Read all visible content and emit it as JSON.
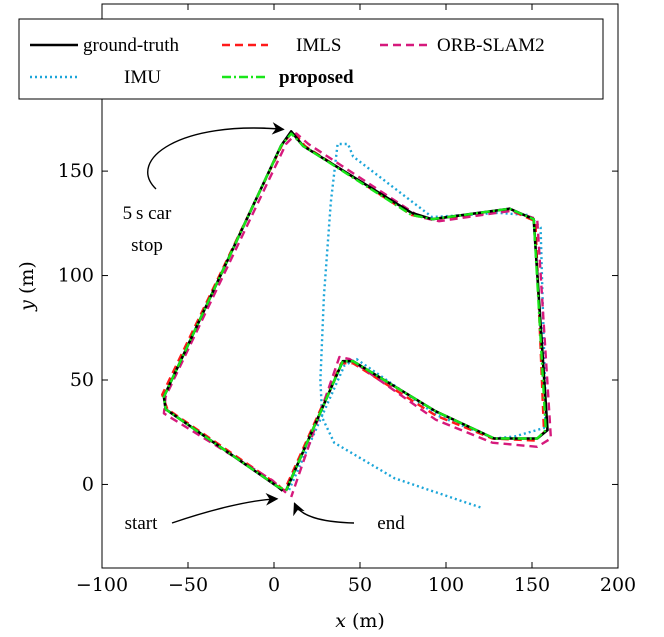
{
  "chart_data": {
    "type": "line",
    "xlabel_var": "x",
    "xlabel_unit": "(m)",
    "ylabel_var": "y",
    "ylabel_unit": "(m)",
    "xlim": [
      -100,
      200
    ],
    "ylim": [
      -40,
      230
    ],
    "xticks": [
      -100,
      -50,
      0,
      50,
      100,
      150,
      200
    ],
    "xtick_labels": [
      "−100",
      "−50",
      "0",
      "50",
      "100",
      "150",
      "200"
    ],
    "yticks": [
      0,
      50,
      100,
      150
    ],
    "ytick_labels": [
      "0",
      "50",
      "100",
      "150"
    ],
    "grid": false,
    "legend_position": "top",
    "series": [
      {
        "name": "ground-truth",
        "color": "#000000",
        "dash": "solid",
        "bold": false,
        "points": [
          [
            5,
            -3
          ],
          [
            2,
            -1
          ],
          [
            -63,
            36
          ],
          [
            -64,
            42
          ],
          [
            4,
            162
          ],
          [
            10,
            169
          ],
          [
            17,
            162
          ],
          [
            80,
            130
          ],
          [
            92,
            127
          ],
          [
            137,
            132
          ],
          [
            151,
            127
          ],
          [
            159,
            26
          ],
          [
            153,
            22
          ],
          [
            128,
            22
          ],
          [
            94,
            35
          ],
          [
            46,
            59
          ],
          [
            40,
            59
          ],
          [
            7,
            -3
          ]
        ]
      },
      {
        "name": "IMLS",
        "color": "#ff1a1a",
        "dash": "dashed",
        "bold": false,
        "points": [
          [
            6,
            -3
          ],
          [
            2,
            0
          ],
          [
            -62,
            36
          ],
          [
            -65,
            43
          ],
          [
            5,
            163
          ],
          [
            11,
            169
          ],
          [
            18,
            162
          ],
          [
            80,
            129
          ],
          [
            92,
            127
          ],
          [
            138,
            131
          ],
          [
            152,
            126
          ],
          [
            157,
            25
          ],
          [
            152,
            21
          ],
          [
            127,
            22
          ],
          [
            94,
            33
          ],
          [
            46,
            58
          ],
          [
            39,
            58
          ],
          [
            6,
            -3
          ]
        ]
      },
      {
        "name": "ORB-SLAM2",
        "color": "#d6197c",
        "dash": "dashed",
        "bold": false,
        "points": [
          [
            7,
            -4
          ],
          [
            -1,
            2
          ],
          [
            -64,
            34
          ],
          [
            -63,
            42
          ],
          [
            7,
            163
          ],
          [
            13,
            168
          ],
          [
            20,
            163
          ],
          [
            85,
            128
          ],
          [
            96,
            126
          ],
          [
            138,
            131
          ],
          [
            153,
            127
          ],
          [
            161,
            22
          ],
          [
            153,
            18
          ],
          [
            127,
            20
          ],
          [
            94,
            31
          ],
          [
            44,
            60
          ],
          [
            38,
            61
          ],
          [
            10,
            -6
          ]
        ]
      },
      {
        "name": "IMU",
        "color": "#1ca6d9",
        "dash": "dotted",
        "bold": false,
        "points": [
          [
            120,
            -11
          ],
          [
            95,
            -4
          ],
          [
            70,
            3
          ],
          [
            35,
            20
          ],
          [
            28,
            32
          ],
          [
            27,
            50
          ],
          [
            29,
            90
          ],
          [
            33,
            135
          ],
          [
            37,
            163
          ],
          [
            43,
            163
          ],
          [
            46,
            157
          ],
          [
            92,
            128
          ],
          [
            130,
            130
          ],
          [
            148,
            129
          ],
          [
            155,
            123
          ],
          [
            158,
            34
          ],
          [
            157,
            27
          ],
          [
            140,
            23
          ],
          [
            128,
            22
          ],
          [
            95,
            33
          ],
          [
            48,
            60
          ],
          [
            41,
            57
          ],
          [
            8,
            -4
          ]
        ]
      },
      {
        "name": "proposed",
        "color": "#19e619",
        "dash": "dashdot",
        "bold": true,
        "points": [
          [
            5,
            -2
          ],
          [
            2,
            -1
          ],
          [
            -63,
            36
          ],
          [
            -64,
            42
          ],
          [
            4,
            162
          ],
          [
            10,
            168
          ],
          [
            17,
            162
          ],
          [
            80,
            129
          ],
          [
            92,
            127
          ],
          [
            137,
            132
          ],
          [
            151,
            127
          ],
          [
            158,
            26
          ],
          [
            153,
            22
          ],
          [
            128,
            22
          ],
          [
            94,
            35
          ],
          [
            46,
            59
          ],
          [
            40,
            59
          ],
          [
            7,
            -3
          ]
        ]
      }
    ],
    "annotations": [
      {
        "name": "car-stop",
        "line1": "5 s car",
        "line2": "stop",
        "target": [
          9,
          169
        ]
      },
      {
        "name": "start",
        "text": "start",
        "target": [
          3,
          -4
        ]
      },
      {
        "name": "end",
        "text": "end",
        "target": [
          9,
          -10
        ]
      }
    ]
  }
}
